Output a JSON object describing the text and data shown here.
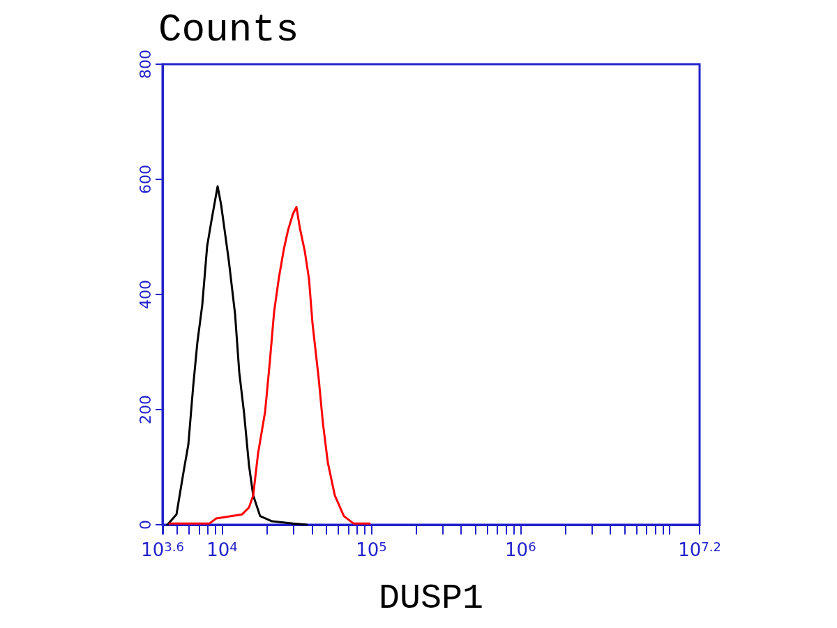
{
  "chart_data": {
    "type": "line",
    "title": "Counts",
    "xlabel": "DUSP1",
    "log": "x",
    "grid": false,
    "marker": "none",
    "line_style": "solid",
    "xlim": [
      3981,
      15848932
    ],
    "ylim": [
      0,
      800
    ],
    "yticks": [
      0,
      200,
      400,
      600,
      800
    ],
    "xticks": [
      {
        "value": 3981,
        "label": "10$^{3.6}$"
      },
      {
        "value": 4000,
        "label": null
      },
      {
        "value": 5000,
        "label": null
      },
      {
        "value": 6000,
        "label": null
      },
      {
        "value": 7000,
        "label": null
      },
      {
        "value": 8000,
        "label": null
      },
      {
        "value": 9000,
        "label": null
      },
      {
        "value": 10000,
        "label": "10$^{4}$"
      },
      {
        "value": 20000,
        "label": null
      },
      {
        "value": 30000,
        "label": null
      },
      {
        "value": 40000,
        "label": null
      },
      {
        "value": 50000,
        "label": null
      },
      {
        "value": 60000,
        "label": null
      },
      {
        "value": 70000,
        "label": null
      },
      {
        "value": 80000,
        "label": null
      },
      {
        "value": 90000,
        "label": null
      },
      {
        "value": 100000,
        "label": "10$^{5}$"
      },
      {
        "value": 200000,
        "label": null
      },
      {
        "value": 300000,
        "label": null
      },
      {
        "value": 400000,
        "label": null
      },
      {
        "value": 500000,
        "label": null
      },
      {
        "value": 600000,
        "label": null
      },
      {
        "value": 700000,
        "label": null
      },
      {
        "value": 800000,
        "label": null
      },
      {
        "value": 900000,
        "label": null
      },
      {
        "value": 1000000,
        "label": "10$^{6}$"
      },
      {
        "value": 2000000,
        "label": null
      },
      {
        "value": 3000000,
        "label": null
      },
      {
        "value": 4000000,
        "label": null
      },
      {
        "value": 5000000,
        "label": null
      },
      {
        "value": 6000000,
        "label": null
      },
      {
        "value": 7000000,
        "label": null
      },
      {
        "value": 8000000,
        "label": null
      },
      {
        "value": 9000000,
        "label": null
      },
      {
        "value": 10000000,
        "label": null
      },
      {
        "value": 15848932,
        "label": "10$^{7.2}$"
      }
    ],
    "series": [
      {
        "color": "#000000",
        "x": [
          4293,
          4938,
          5500,
          5929,
          6393,
          6820,
          7354,
          7930,
          8457,
          9318,
          9833,
          10378,
          11069,
          12197,
          13013,
          14028,
          15126,
          16137,
          17968,
          21577,
          29806,
          36960
        ],
        "values": [
          0,
          18,
          91,
          139,
          241,
          317,
          382,
          484,
          527,
          588,
          556,
          512,
          459,
          366,
          265,
          193,
          103,
          51,
          15,
          6,
          2,
          0
        ]
      },
      {
        "color": "#ff0000",
        "x": [
          4435,
          8187,
          9120,
          13583,
          15126,
          16137,
          17400,
          19387,
          20893,
          22284,
          24030,
          25911,
          27645,
          29806,
          31447,
          33189,
          35785,
          38176,
          40296,
          44384,
          47355,
          51058,
          56845,
          65389,
          76033,
          97389
        ],
        "values": [
          2,
          2,
          11,
          18,
          30,
          51,
          124,
          196,
          285,
          370,
          430,
          479,
          512,
          540,
          552,
          515,
          475,
          427,
          350,
          253,
          176,
          108,
          51,
          15,
          2,
          2
        ]
      }
    ]
  }
}
